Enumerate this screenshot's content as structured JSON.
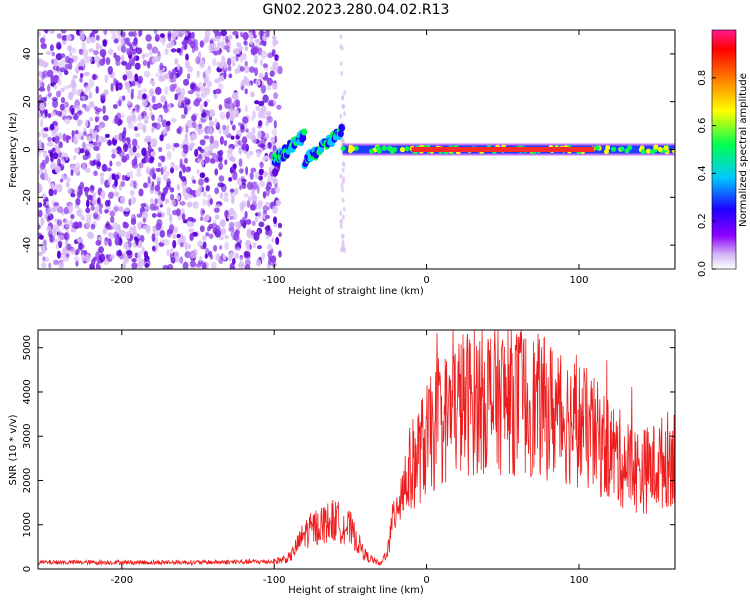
{
  "title": "GN02.2023.280.04.02.R13",
  "colors": {
    "snr_line": "#ee1c1c",
    "spec_dim": "#d9bdf5",
    "spec_mid": "#8a3ae8",
    "spec_deep": "#5a00d8"
  },
  "chart_data": [
    {
      "type": "heatmap",
      "title": "GN02.2023.280.04.02.R13",
      "xlabel": "Height of straight line (km)",
      "ylabel": "Frequency (Hz)",
      "xlim": [
        -255,
        163
      ],
      "ylim": [
        -50,
        50
      ],
      "xticks": [
        -200,
        -100,
        0,
        100
      ],
      "xtick_labels": [
        "-200",
        "-100",
        "0",
        "100"
      ],
      "yticks": [
        -40,
        -20,
        0,
        20,
        40
      ],
      "ytick_labels": [
        "-40",
        "-20",
        "0",
        "20",
        "40"
      ],
      "colorbar": {
        "label": "Normalized spectral amplitude",
        "range": [
          0.0,
          1.0
        ],
        "ticks": [
          0.0,
          0.2,
          0.4,
          0.6,
          0.8
        ],
        "tick_labels": [
          "0.0",
          "0.2",
          "0.4",
          "0.6",
          "0.8"
        ],
        "colormap": "rainbow"
      },
      "features": [
        {
          "name": "broadband noise",
          "x_range": [
            -255,
            -100
          ],
          "freq_range": [
            -50,
            50
          ],
          "amplitude": 0.15
        },
        {
          "name": "rising arc",
          "x_range": [
            -100,
            -80
          ],
          "freq_range": [
            -5,
            6
          ],
          "amplitude": 0.35
        },
        {
          "name": "second arc",
          "x_range": [
            -80,
            -55
          ],
          "freq_range": [
            -5,
            8
          ],
          "amplitude": 0.35
        },
        {
          "name": "isolated streak",
          "x": -55,
          "freq_range": [
            -50,
            50
          ],
          "amplitude": 0.08
        },
        {
          "name": "narrow band",
          "x_range": [
            -55,
            163
          ],
          "freq": 0,
          "amplitude": 0.9
        }
      ]
    },
    {
      "type": "line",
      "xlabel": "Height of straight line (km)",
      "ylabel": "SNR (10 * v/v)",
      "xlim": [
        -255,
        163
      ],
      "ylim": [
        0,
        5400
      ],
      "xticks": [
        -200,
        -100,
        0,
        100
      ],
      "xtick_labels": [
        "-200",
        "-100",
        "0",
        "100"
      ],
      "yticks": [
        0,
        1000,
        2000,
        3000,
        4000,
        5000
      ],
      "ytick_labels": [
        "0",
        "1000",
        "2000",
        "3000",
        "4000",
        "5000"
      ],
      "envelope": {
        "x": [
          -255,
          -200,
          -150,
          -100,
          -90,
          -80,
          -70,
          -60,
          -50,
          -40,
          -30,
          -25,
          -20,
          -10,
          0,
          20,
          40,
          60,
          80,
          100,
          110,
          120,
          130,
          140,
          150,
          163
        ],
        "y": [
          150,
          150,
          150,
          170,
          250,
          800,
          1000,
          1100,
          900,
          300,
          100,
          500,
          1500,
          2300,
          2900,
          3700,
          3900,
          3800,
          3600,
          3300,
          3000,
          2700,
          2400,
          2200,
          2300,
          2600
        ]
      }
    }
  ]
}
